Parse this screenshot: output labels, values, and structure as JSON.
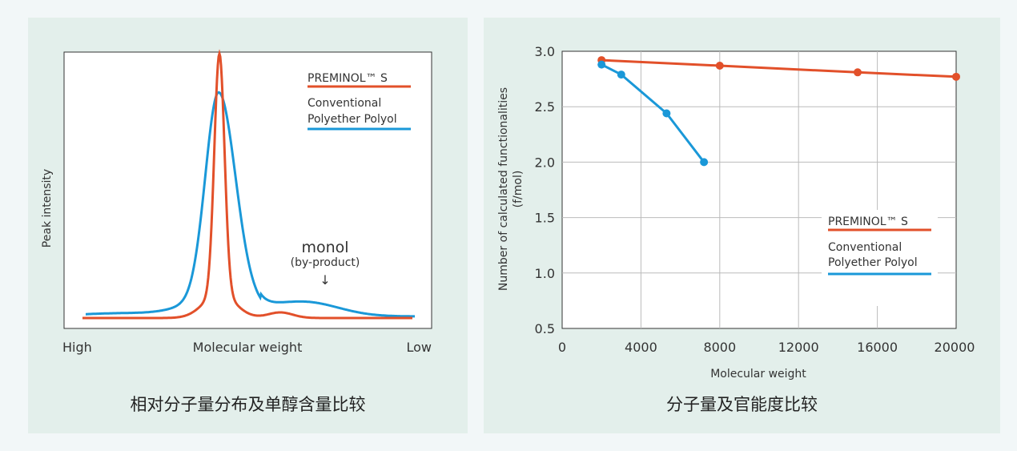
{
  "colors": {
    "preminol": "#e2502a",
    "conventional": "#1a98d8",
    "panel_bg": "#e3efeb",
    "grid": "#bbbbbb"
  },
  "left": {
    "caption": "相对分子量分布及单醇含量比较",
    "ylabel": "Peak intensity",
    "xlabel": "Molecular weight",
    "x_high": "High",
    "x_low": "Low",
    "annotation_main": "monol",
    "annotation_sub": "(by-product)",
    "annotation_arrow": "↓",
    "legend": [
      {
        "label": "PREMINOL™ S",
        "color": "#e2502a"
      },
      {
        "label": "Conventional",
        "label2": "Polyether Polyol",
        "color": "#1a98d8"
      }
    ]
  },
  "right": {
    "caption": "分子量及官能度比较",
    "legend": [
      {
        "label": "PREMINOL™ S",
        "color": "#e2502a"
      },
      {
        "label": "Conventional",
        "label2": "Polyether Polyol",
        "color": "#1a98d8"
      }
    ]
  },
  "chart_data": [
    {
      "type": "line",
      "title": "",
      "xlabel": "Molecular weight",
      "ylabel": "Peak intensity",
      "x_tick_labels": [
        "High",
        "Low"
      ],
      "series": [
        {
          "name": "PREMINOL™ S",
          "shape": "narrow peak at center with small monol bump"
        },
        {
          "name": "Conventional Polyether Polyol",
          "shape": "broad peak at center with raised monol by-product region at low molecular weight"
        }
      ],
      "annotations": [
        "monol",
        "(by-product)"
      ]
    },
    {
      "type": "line",
      "title": "",
      "xlabel": "Molecular weight",
      "ylabel": "Number of calculated functionalities",
      "ylabel2": "(f/mol)",
      "xlim": [
        0,
        20000
      ],
      "ylim": [
        0.5,
        3.0
      ],
      "xticks": [
        0,
        4000,
        8000,
        12000,
        16000,
        20000
      ],
      "xtick_labels": [
        "0",
        "4000",
        "8000",
        "12000",
        "16000",
        "20000"
      ],
      "yticks": [
        0.5,
        1.0,
        1.5,
        2.0,
        2.5,
        3.0
      ],
      "ytick_labels": [
        "0.5",
        "1.0",
        "1.5",
        "2.0",
        "2.5",
        "3.0"
      ],
      "grid": true,
      "legend_position": "right",
      "series": [
        {
          "name": "PREMINOL™ S",
          "x": [
            2000,
            8000,
            15000,
            20000
          ],
          "y": [
            2.92,
            2.87,
            2.81,
            2.77
          ]
        },
        {
          "name": "Conventional Polyether Polyol",
          "x": [
            2000,
            3000,
            5300,
            7200
          ],
          "y": [
            2.88,
            2.79,
            2.44,
            2.0
          ]
        }
      ]
    }
  ]
}
